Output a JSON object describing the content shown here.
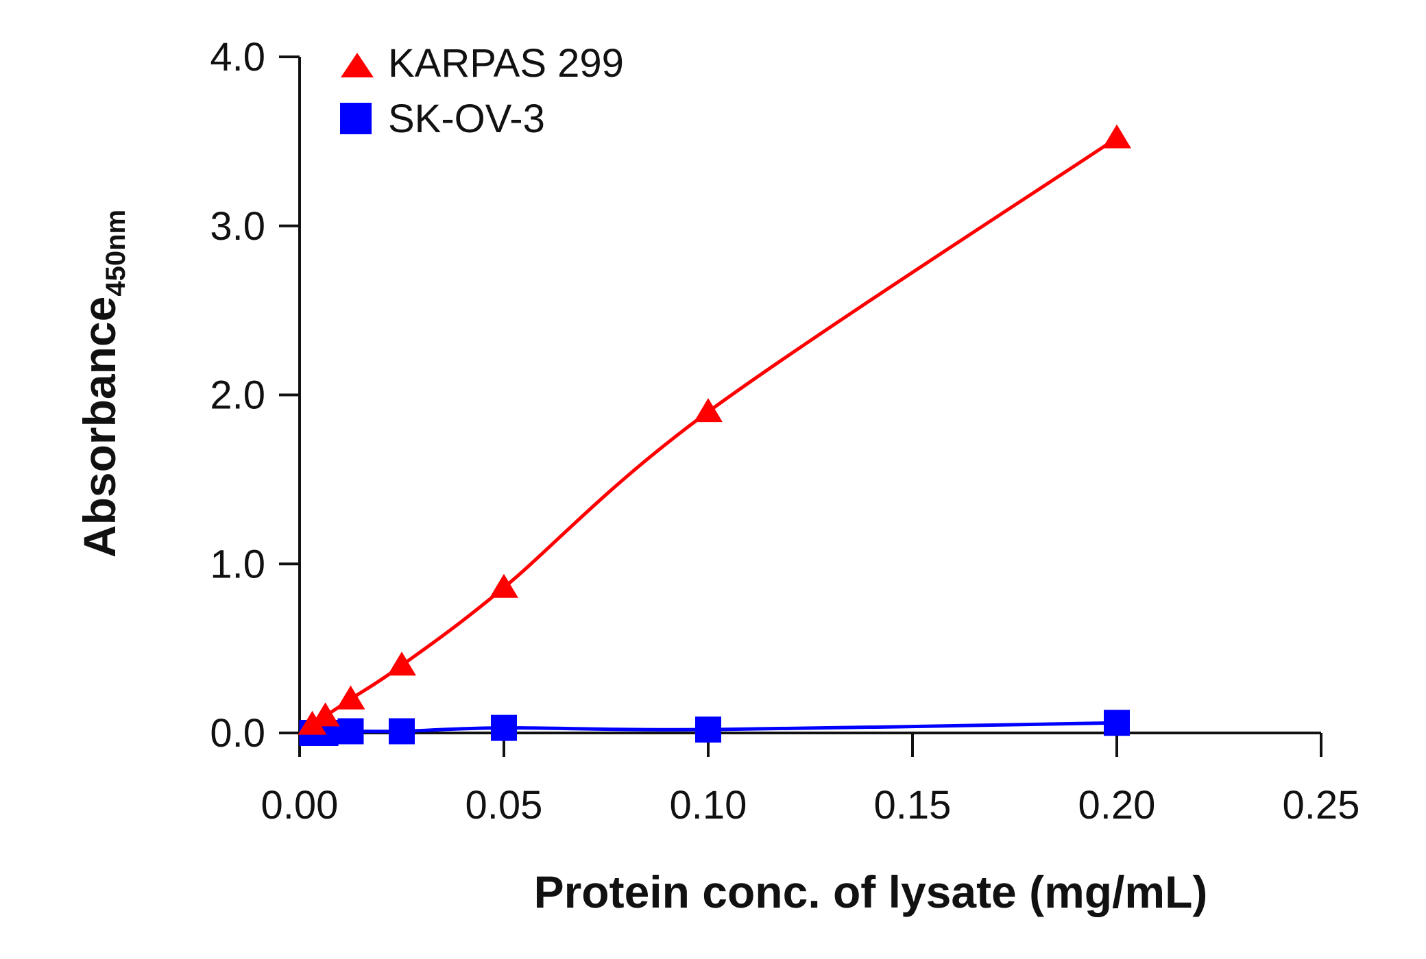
{
  "chart_data": {
    "type": "line",
    "title": "",
    "xlabel": "Protein conc. of lysate (mg/mL)",
    "ylabel": "Absorbance",
    "ylabel_subscript": "450nm",
    "xlim": [
      0,
      0.25
    ],
    "ylim": [
      0,
      4.0
    ],
    "xticks": [
      "0.00",
      "0.05",
      "0.10",
      "0.15",
      "0.20",
      "0.25"
    ],
    "yticks": [
      "0.0",
      "1.0",
      "2.0",
      "3.0",
      "4.0"
    ],
    "grid": false,
    "legend_position": "top-left",
    "series": [
      {
        "name": "KARPAS 299",
        "color": "#ff0000",
        "marker": "triangle",
        "x": [
          0.0031,
          0.0063,
          0.0125,
          0.025,
          0.05,
          0.1,
          0.2
        ],
        "y": [
          0.05,
          0.1,
          0.2,
          0.4,
          0.86,
          1.9,
          3.52
        ]
      },
      {
        "name": "SK-OV-3",
        "color": "#0000ff",
        "marker": "square",
        "x": [
          0.0031,
          0.0063,
          0.0125,
          0.025,
          0.05,
          0.1,
          0.2
        ],
        "y": [
          0.0,
          0.0,
          0.01,
          0.01,
          0.03,
          0.02,
          0.06
        ]
      }
    ]
  }
}
